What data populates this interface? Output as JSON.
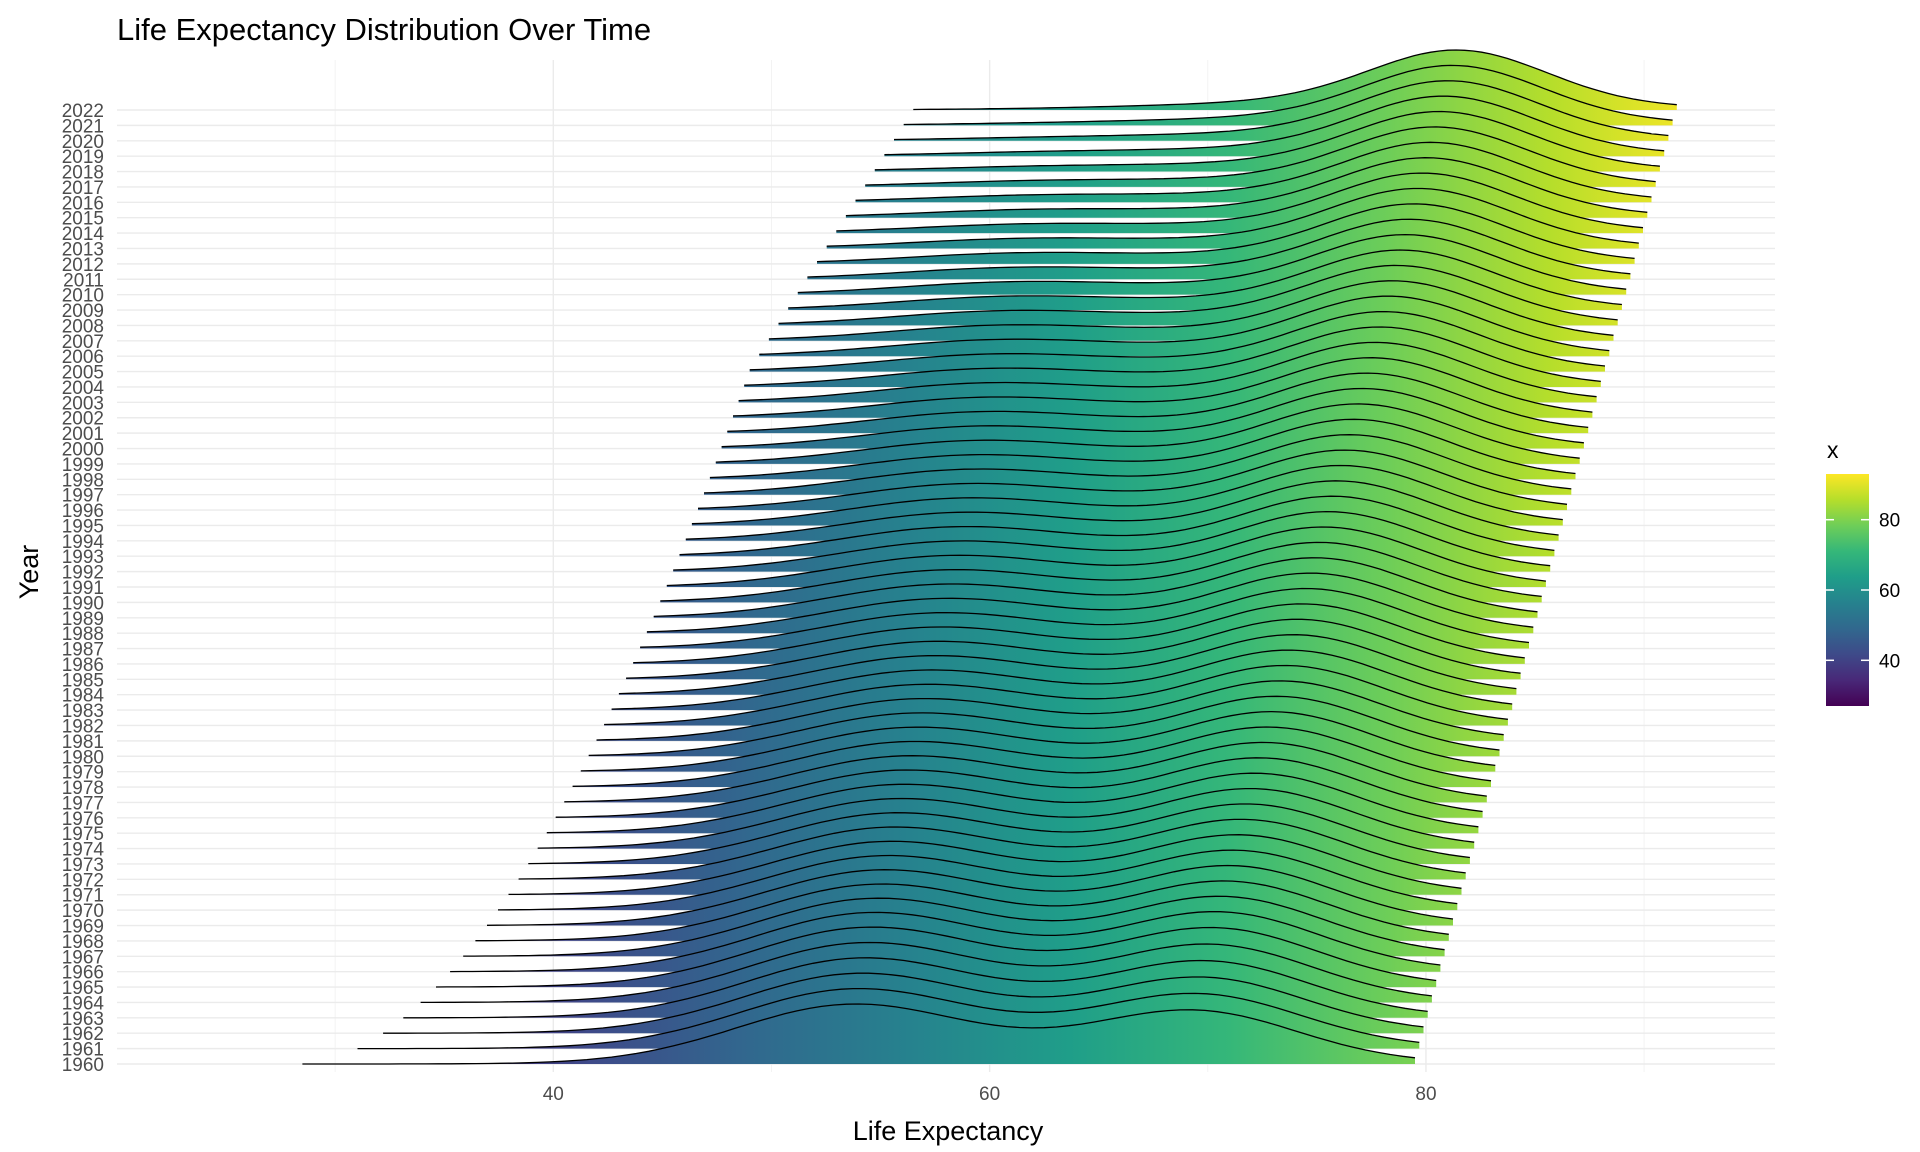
{
  "chart_data": {
    "type": "ridgeline",
    "title": "Life Expectancy Distribution Over Time",
    "xlabel": "Life Expectancy",
    "ylabel": "Year",
    "xlim": [
      20,
      96
    ],
    "x_ticks": [
      40,
      60,
      80
    ],
    "grid": true,
    "legend": {
      "title": "x",
      "position": "right",
      "type": "colorbar",
      "palette": "viridis",
      "range": [
        27,
        93
      ],
      "ticks": [
        40,
        60,
        80
      ],
      "colors": [
        "#440154",
        "#482878",
        "#3e4a89",
        "#31688e",
        "#26828e",
        "#1f9e89",
        "#35b779",
        "#6ece58",
        "#b5de2b",
        "#fde725"
      ]
    },
    "years": [
      1960,
      1961,
      1962,
      1963,
      1964,
      1965,
      1966,
      1967,
      1968,
      1969,
      1970,
      1971,
      1972,
      1973,
      1974,
      1975,
      1976,
      1977,
      1978,
      1979,
      1980,
      1981,
      1982,
      1983,
      1984,
      1985,
      1986,
      1987,
      1988,
      1989,
      1990,
      1991,
      1992,
      1993,
      1994,
      1995,
      1996,
      1997,
      1998,
      1999,
      2000,
      2001,
      2002,
      2003,
      2004,
      2005,
      2006,
      2007,
      2008,
      2009,
      2010,
      2011,
      2012,
      2013,
      2014,
      2015,
      2016,
      2017,
      2018,
      2019,
      2020,
      2021,
      2022
    ],
    "series_shape": {
      "min_start": 28.5,
      "min_end": 56.5,
      "min_min": 49.0,
      "min_min_year": 2005,
      "max_start": 79.5,
      "max_end": 91.5,
      "modes": [
        {
          "name": "low",
          "x_start": 53.5,
          "x_end": 62.5,
          "weight_start": 1.0,
          "weight_end": 0.0
        },
        {
          "name": "high",
          "x_start": 69.5,
          "x_end": 81.5,
          "weight_start": 0.85,
          "weight_end": 1.0
        }
      ]
    }
  }
}
